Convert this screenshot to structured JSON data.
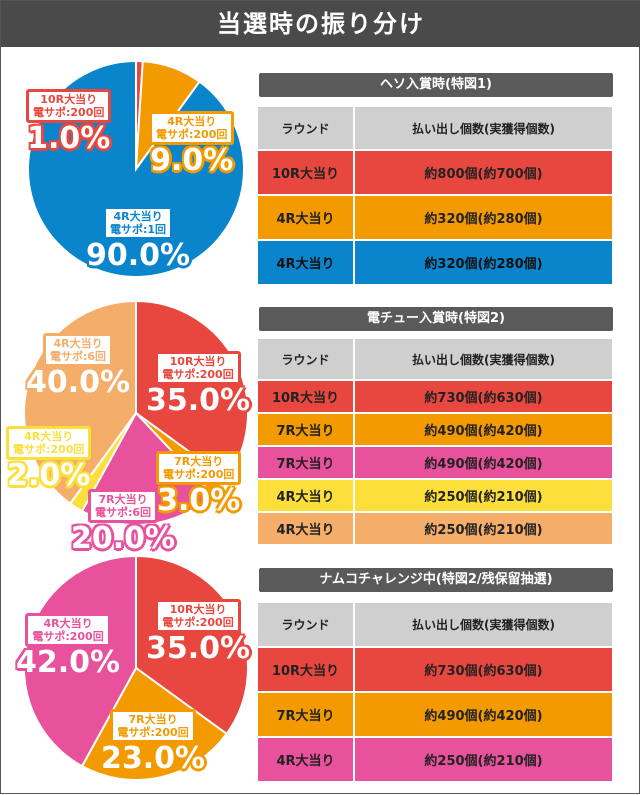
{
  "title": "当選時の振り分け",
  "colors": {
    "blue": "#0a85cc",
    "red": "#e8473f",
    "orange": "#f29a00",
    "pink": "#e8519b",
    "yellow": "#fddf3c",
    "lightorange": "#f5ad6a"
  },
  "chart_data": [
    {
      "type": "pie",
      "slices": [
        {
          "label": "10R大当り",
          "sub": "電サポ:200回",
          "value": 1.0,
          "pct": "1.0%",
          "color": "#e8473f"
        },
        {
          "label": "4R大当り",
          "sub": "電サポ:200回",
          "value": 9.0,
          "pct": "9.0%",
          "color": "#f29a00"
        },
        {
          "label": "4R大当り",
          "sub": "電サポ:1回",
          "value": 90.0,
          "pct": "90.0%",
          "color": "#0a85cc"
        }
      ]
    },
    {
      "type": "pie",
      "slices": [
        {
          "label": "10R大当り",
          "sub": "電サポ:200回",
          "value": 35.0,
          "pct": "35.0%",
          "color": "#e8473f"
        },
        {
          "label": "7R大当り",
          "sub": "電サポ:200回",
          "value": 3.0,
          "pct": "3.0%",
          "color": "#f29a00"
        },
        {
          "label": "7R大当り",
          "sub": "電サポ:6回",
          "value": 20.0,
          "pct": "20.0%",
          "color": "#e8519b"
        },
        {
          "label": "4R大当り",
          "sub": "電サポ:200回",
          "value": 2.0,
          "pct": "2.0%",
          "color": "#fddf3c"
        },
        {
          "label": "4R大当り",
          "sub": "電サポ:6回",
          "value": 40.0,
          "pct": "40.0%",
          "color": "#f5ad6a"
        }
      ]
    },
    {
      "type": "pie",
      "slices": [
        {
          "label": "10R大当り",
          "sub": "電サポ:200回",
          "value": 35.0,
          "pct": "35.0%",
          "color": "#e8473f"
        },
        {
          "label": "7R大当り",
          "sub": "電サポ:200回",
          "value": 23.0,
          "pct": "23.0%",
          "color": "#f29a00"
        },
        {
          "label": "4R大当り",
          "sub": "電サポ:200回",
          "value": 42.0,
          "pct": "42.0%",
          "color": "#e8519b"
        }
      ]
    }
  ],
  "tables": [
    {
      "heading": "ヘソ入賞時(特図1)",
      "headers": [
        "ラウンド",
        "払い出し個数(実獲得個数)"
      ],
      "rows": [
        [
          "10R大当り",
          "約800個(約700個)",
          "#e8473f"
        ],
        [
          "4R大当り",
          "約320個(約280個)",
          "#f29a00"
        ],
        [
          "4R大当り",
          "約320個(約280個)",
          "#0a85cc"
        ]
      ]
    },
    {
      "heading": "電チュー入賞時(特図2)",
      "headers": [
        "ラウンド",
        "払い出し個数(実獲得個数)"
      ],
      "rows": [
        [
          "10R大当り",
          "約730個(約630個)",
          "#e8473f"
        ],
        [
          "7R大当り",
          "約490個(約420個)",
          "#f29a00"
        ],
        [
          "7R大当り",
          "約490個(約420個)",
          "#e8519b"
        ],
        [
          "4R大当り",
          "約250個(約210個)",
          "#fddf3c"
        ],
        [
          "4R大当り",
          "約250個(約210個)",
          "#f5ad6a"
        ]
      ]
    },
    {
      "heading": "ナムコチャレンジ中(特図2/残保留抽選)",
      "headers": [
        "ラウンド",
        "払い出し個数(実獲得個数)"
      ],
      "rows": [
        [
          "10R大当り",
          "約730個(約630個)",
          "#e8473f"
        ],
        [
          "7R大当り",
          "約490個(約420個)",
          "#f29a00"
        ],
        [
          "4R大当り",
          "約250個(約210個)",
          "#e8519b"
        ]
      ]
    }
  ]
}
